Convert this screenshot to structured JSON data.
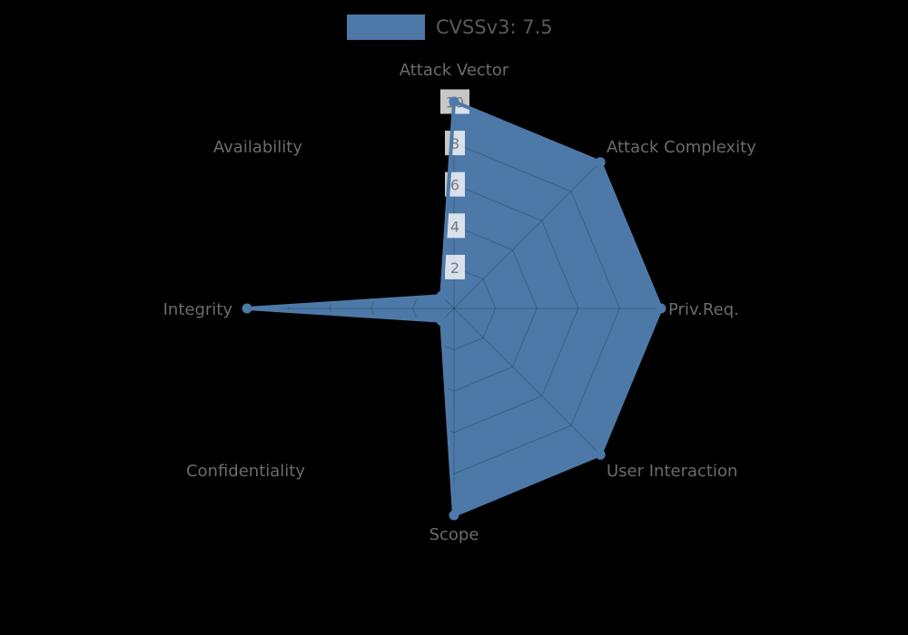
{
  "legend": {
    "label": "CVSSv3: 7.5",
    "swatch_color": "#4d79a8"
  },
  "chart_data": {
    "type": "radar",
    "categories": [
      "Attack Vector",
      "Attack Complexity",
      "Priv.Req.",
      "User Interaction",
      "Scope",
      "Confidentiality",
      "Integrity",
      "Availability"
    ],
    "series": [
      {
        "name": "CVSSv3: 7.5",
        "color": "#4d79a8",
        "fill": true,
        "values": [
          10,
          10,
          10,
          10,
          10,
          0.85,
          10,
          0.85
        ]
      }
    ],
    "radial_axis": {
      "min": 0,
      "max": 10,
      "ticks": [
        2,
        4,
        6,
        8,
        10
      ],
      "tick_label_color": "#7a7a7a",
      "tick_box_color": "rgba(255,255,255,0.78)"
    },
    "start_angle_deg": 90,
    "direction": "clockwise",
    "grid": true,
    "gridline_shape": "polygon",
    "grid_color": "rgba(0,0,0,0.17)",
    "legend_position": "top-center",
    "background": "#000000",
    "label_color": "#6b6b6b"
  }
}
